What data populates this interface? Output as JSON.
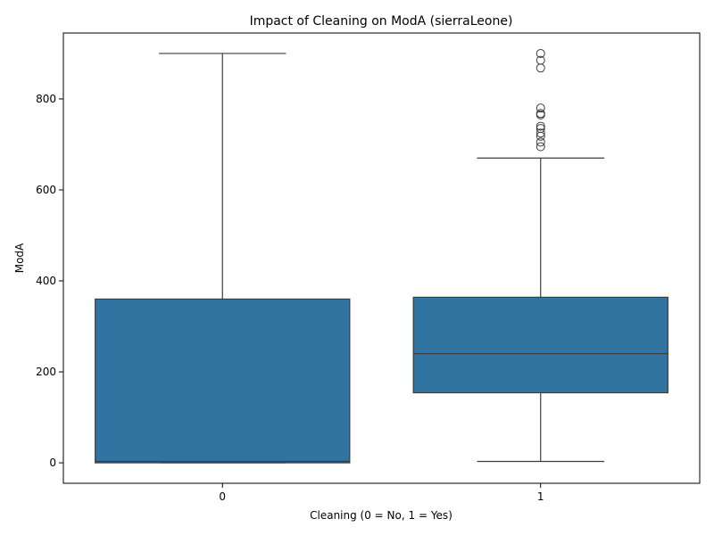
{
  "chart_data": {
    "type": "box",
    "title": "Impact of Cleaning on ModA (sierraLeone)",
    "xlabel": "Cleaning (0 = No, 1 = Yes)",
    "ylabel": "ModA",
    "ylim": [
      -45,
      945
    ],
    "yticks": [
      0,
      200,
      400,
      600,
      800
    ],
    "categories": [
      "0",
      "1"
    ],
    "box_color": "#3274a1",
    "line_color": "#3d3d3d",
    "boxes": [
      {
        "category": "0",
        "whisker_low": 0,
        "q1": 0,
        "median": 3,
        "q3": 360,
        "whisker_high": 900,
        "outliers": []
      },
      {
        "category": "1",
        "whisker_low": 3,
        "q1": 154,
        "median": 240,
        "q3": 364,
        "whisker_high": 670,
        "outliers": [
          695,
          705,
          718,
          725,
          735,
          740,
          765,
          768,
          780,
          868,
          885,
          900
        ]
      }
    ],
    "grid": false,
    "legend": "none"
  }
}
